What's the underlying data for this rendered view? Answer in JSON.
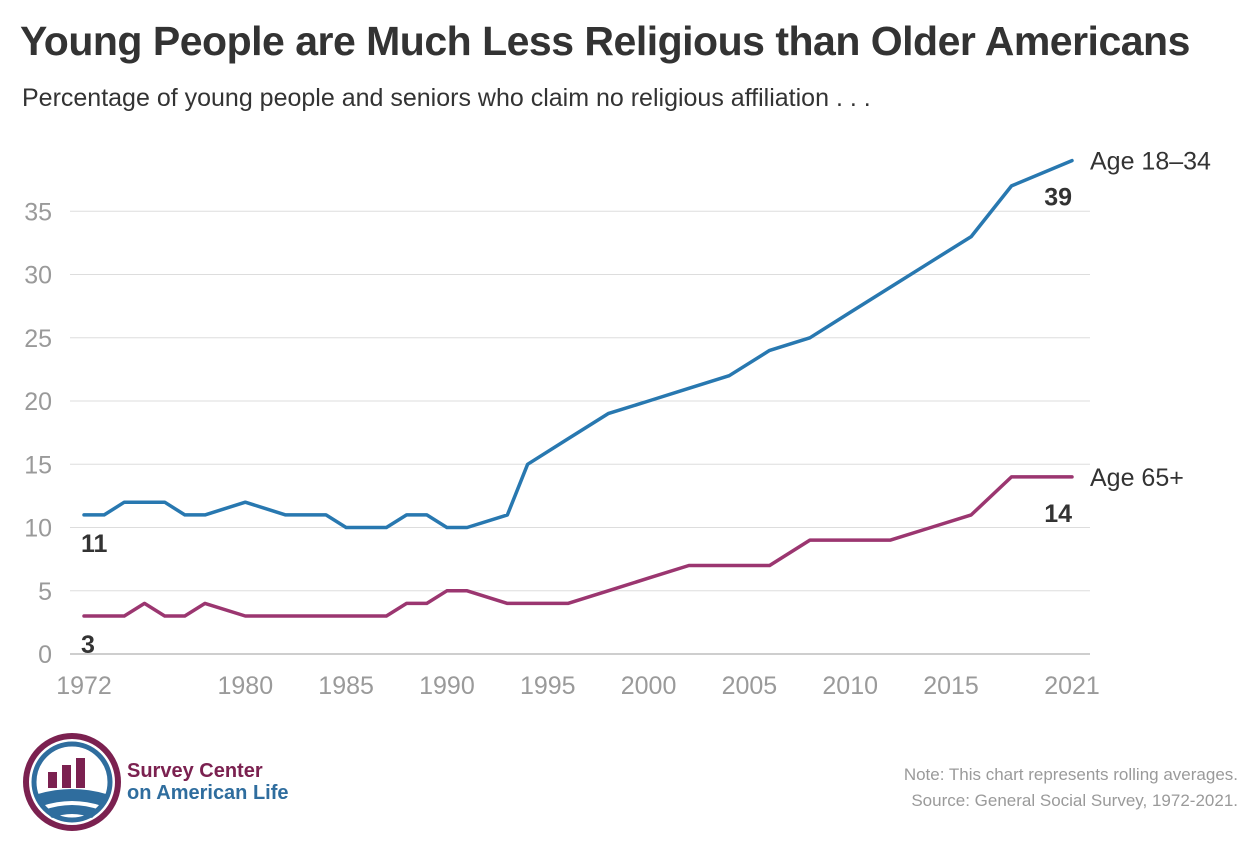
{
  "header": {
    "title": "Young People are Much Less Religious than Older Americans",
    "subtitle": "Percentage of young people and seniors who claim no religious affiliation . . ."
  },
  "chart_data": {
    "type": "line",
    "title": "Young People are Much Less Religious than Older Americans",
    "subtitle": "Percentage of young people and seniors who claim no religious affiliation . . .",
    "xlabel": "",
    "ylabel": "",
    "xlim": [
      1972,
      2021
    ],
    "ylim": [
      0,
      40
    ],
    "x_ticks": [
      1972,
      1980,
      1985,
      1990,
      1995,
      2000,
      2005,
      2010,
      2015,
      2021
    ],
    "y_ticks": [
      0,
      5,
      10,
      15,
      20,
      25,
      30,
      35
    ],
    "grid": true,
    "legend": "direct labels at line ends",
    "series": [
      {
        "name": "Age 18–34",
        "color": "#2878b0",
        "start_label": "11",
        "end_label": "39",
        "x": [
          1972,
          1973,
          1974,
          1975,
          1976,
          1977,
          1978,
          1980,
          1982,
          1983,
          1984,
          1985,
          1986,
          1987,
          1988,
          1989,
          1990,
          1991,
          1993,
          1994,
          1996,
          1998,
          2000,
          2002,
          2004,
          2006,
          2008,
          2010,
          2012,
          2014,
          2016,
          2018,
          2021
        ],
        "values": [
          11,
          11,
          12,
          12,
          12,
          11,
          11,
          12,
          11,
          11,
          11,
          10,
          10,
          10,
          11,
          11,
          10,
          10,
          11,
          15,
          17,
          19,
          20,
          21,
          22,
          24,
          25,
          27,
          29,
          31,
          33,
          37,
          39
        ]
      },
      {
        "name": "Age 65+",
        "color": "#9b3670",
        "start_label": "3",
        "end_label": "14",
        "x": [
          1972,
          1973,
          1974,
          1975,
          1976,
          1977,
          1978,
          1980,
          1982,
          1983,
          1984,
          1985,
          1986,
          1987,
          1988,
          1989,
          1990,
          1991,
          1993,
          1994,
          1996,
          1998,
          2000,
          2002,
          2004,
          2006,
          2008,
          2010,
          2012,
          2014,
          2016,
          2018,
          2021
        ],
        "values": [
          3,
          3,
          3,
          4,
          3,
          3,
          4,
          3,
          3,
          3,
          3,
          3,
          3,
          3,
          4,
          4,
          5,
          5,
          4,
          4,
          4,
          5,
          6,
          7,
          7,
          7,
          9,
          9,
          9,
          10,
          11,
          14,
          14
        ]
      }
    ],
    "colors": {
      "grid": "#dddddd",
      "tick_text": "#9a9a9a",
      "value_label": "#333333"
    }
  },
  "logo": {
    "line1": "Survey Center",
    "line2": "on American Life",
    "colors": {
      "primary": "#7b2150",
      "secondary": "#2f6d9e"
    }
  },
  "footer": {
    "note": "Note: This chart represents rolling averages.",
    "source": "Source: General Social Survey, 1972-2021."
  }
}
